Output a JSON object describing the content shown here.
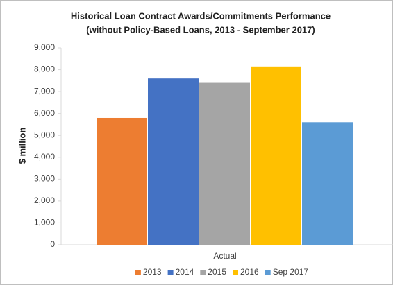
{
  "chart_data": {
    "type": "bar",
    "title": "Historical Loan Contract Awards/Commitments Performance",
    "subtitle": "(without Policy-Based Loans, 2013 - September 2017)",
    "y_label": "$ million",
    "categories": [
      "Actual"
    ],
    "series": [
      {
        "name": "2013",
        "color": "#ED7D31",
        "values": [
          5800
        ]
      },
      {
        "name": "2014",
        "color": "#4472C4",
        "values": [
          7600
        ]
      },
      {
        "name": "2015",
        "color": "#A5A5A5",
        "values": [
          7430
        ]
      },
      {
        "name": "2016",
        "color": "#FFC000",
        "values": [
          8150
        ]
      },
      {
        "name": "Sep 2017",
        "color": "#5B9BD5",
        "values": [
          5600
        ]
      }
    ],
    "ylim": [
      0,
      9000
    ],
    "yticks": [
      0,
      {
        "value": 1000,
        "label": "1,000"
      },
      {
        "value": 2000,
        "label": "2,000"
      },
      {
        "value": 3000,
        "label": "3,000"
      },
      {
        "value": 4000,
        "label": "4,000"
      },
      {
        "value": 5000,
        "label": "5,000"
      },
      {
        "value": 6000,
        "label": "6,000"
      },
      {
        "value": 7000,
        "label": "7,000"
      },
      {
        "value": 8000,
        "label": "8,000"
      },
      {
        "value": 9000,
        "label": "9,000"
      }
    ],
    "legend": "bottom"
  }
}
